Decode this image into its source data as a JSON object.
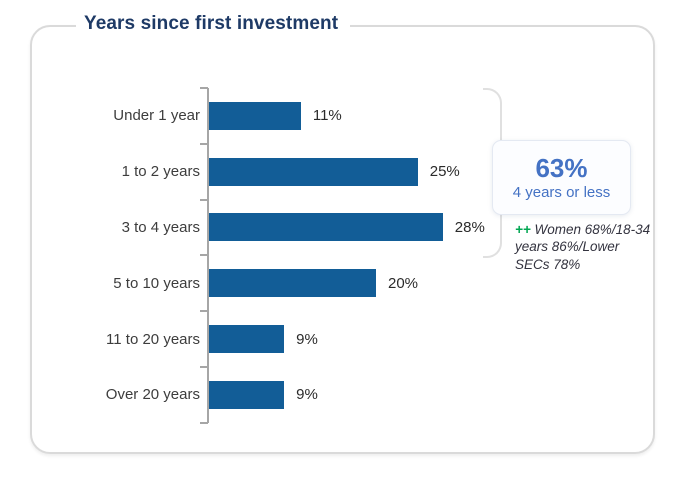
{
  "title": "Years since first investment",
  "chart_data": {
    "type": "bar",
    "orientation": "horizontal",
    "title": "Years since first investment",
    "categories": [
      "Under 1 year",
      "1 to 2 years",
      "3 to 4 years",
      "5 to 10 years",
      "11 to 20 years",
      "Over 20 years"
    ],
    "values": [
      11,
      25,
      28,
      20,
      9,
      9
    ],
    "value_suffix": "%",
    "value_labels": true,
    "xlim": [
      0,
      30
    ],
    "grid": false,
    "legend": false,
    "bar_color": "#125d97",
    "axis_color": "#a6a6a6"
  },
  "callout": {
    "pct": "63%",
    "label": "4 years or less"
  },
  "note": {
    "marker": "++",
    "text": " Women 68%/18-34 years 86%/Lower SECs 78%"
  },
  "colors": {
    "title": "#1e3a66",
    "bar": "#125d97",
    "callout_text": "#4472c4",
    "note_marker_green": "#00a651",
    "frame_border": "#dadada"
  }
}
